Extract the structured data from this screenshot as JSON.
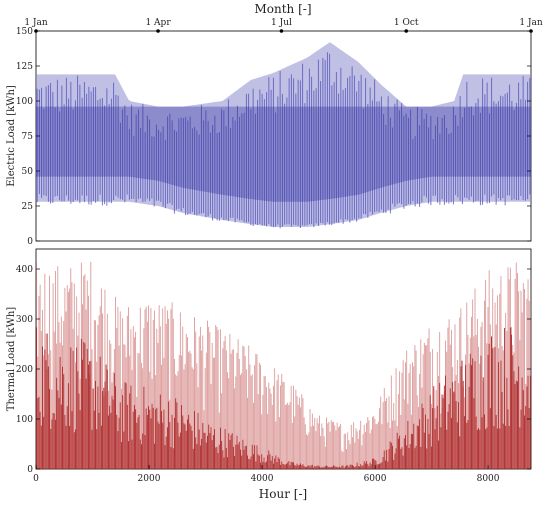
{
  "chart_data": [
    {
      "type": "area",
      "panel": "top",
      "top_axis_label": "Month [-]",
      "top_ticks": [
        {
          "label": "1 Jan",
          "hour": 0
        },
        {
          "label": "1 Apr",
          "hour": 2160
        },
        {
          "label": "1 Jul",
          "hour": 4344
        },
        {
          "label": "1 Oct",
          "hour": 6552
        },
        {
          "label": "1 Jan",
          "hour": 8760
        }
      ],
      "ylabel": "Electric Load [kWh]",
      "ylim": [
        0,
        150
      ],
      "yticks": [
        0,
        25,
        50,
        75,
        100,
        125,
        150
      ],
      "xlim": [
        0,
        8760
      ],
      "colors": {
        "light": "#8c8cd0",
        "dark": "#2a2a9e",
        "line": "#5050b8"
      },
      "description": "hourly electric load, oscillating ~30-97 kWh with peaks to 119 in winter and up to ~142 in summer",
      "series": [
        {
          "x_hour": [
            0,
            600,
            1400,
            1650,
            2160,
            2600,
            3300,
            3800,
            4200,
            4800,
            5200,
            5700,
            6100,
            6552,
            7000,
            7400,
            7560,
            8200,
            8760
          ],
          "y_max": [
            119,
            119,
            119,
            100,
            96,
            96,
            100,
            115,
            120,
            131,
            142,
            128,
            112,
            96,
            96,
            100,
            119,
            119,
            119
          ],
          "y_base": [
            28,
            28,
            28,
            28,
            25,
            20,
            15,
            12,
            10,
            10,
            12,
            15,
            20,
            25,
            28,
            28,
            28,
            28,
            28
          ]
        }
      ]
    },
    {
      "type": "area",
      "panel": "bottom",
      "xlabel": "Hour [-]",
      "ylabel": "Thermal Load [kWh]",
      "ylim": [
        0,
        440
      ],
      "yticks": [
        0,
        100,
        200,
        300,
        400
      ],
      "xlim": [
        0,
        8760
      ],
      "xticks": [
        0,
        2000,
        4000,
        6000,
        8000
      ],
      "colors": {
        "light": "#e7b0b0",
        "dark": "#a81c1c",
        "line": "#d07a7a"
      },
      "series": [
        {
          "name": "",
          "x_hour": [
            0,
            500,
            1000,
            1500,
            2000,
            2500,
            3000,
            3500,
            4000,
            4500,
            5000,
            5500,
            6000,
            6500,
            7000,
            7500,
            8000,
            8500,
            8760
          ],
          "y_peak": [
            420,
            410,
            425,
            330,
            350,
            330,
            300,
            270,
            230,
            180,
            110,
            90,
            130,
            240,
            300,
            330,
            400,
            420,
            410
          ],
          "y_typical": [
            200,
            180,
            170,
            120,
            110,
            100,
            70,
            50,
            30,
            10,
            5,
            5,
            15,
            60,
            110,
            150,
            190,
            200,
            200
          ]
        }
      ]
    }
  ]
}
